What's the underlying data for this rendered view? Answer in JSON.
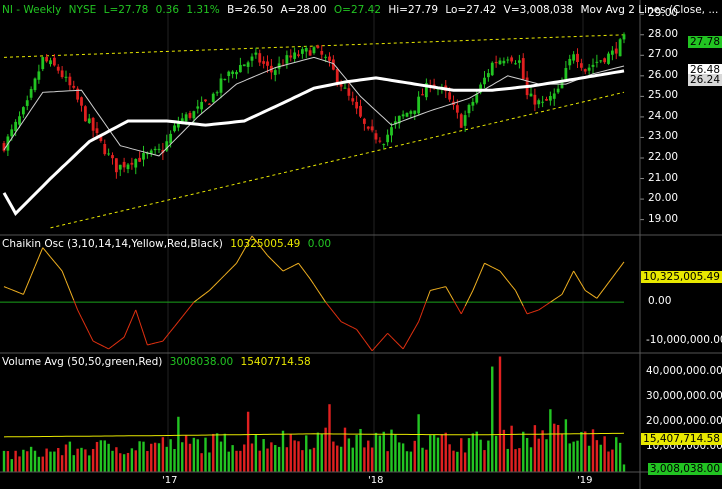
{
  "header": {
    "symbol": "NI - Weekly",
    "exchange": "NYSE",
    "last": "L=27.78",
    "change": "0.36",
    "change_pct": "1.31%",
    "bid": "B=26.50",
    "ask": "A=28.00",
    "open": "O=27.42",
    "high": "Hi=27.79",
    "low": "Lo=27.42",
    "volume": "V=3,008,038",
    "ma_label": "Mov Avg 2 Lines (Close, ..."
  },
  "chaikin_header": {
    "label": "Chaikin Osc (3,10,14,14,Yellow,Red,Black)",
    "value": "10325005.49",
    "value2": "0.00"
  },
  "volume_header": {
    "label": "Volume Avg (50,50,green,Red)",
    "value": "3008038.00",
    "value2": "15407714.58"
  },
  "price_axis": {
    "ticks": [
      "29.00",
      "28.00",
      "27.00",
      "26.00",
      "25.00",
      "24.00",
      "23.00",
      "22.00",
      "21.00",
      "20.00",
      "19.00"
    ],
    "last_label": "27.78",
    "ma_label_1": "26.48",
    "ma_label_2": "26.24"
  },
  "chaikin_axis": {
    "ticks": [
      "10,325,005.49",
      "0.00",
      "-10,000,000.00"
    ]
  },
  "volume_axis": {
    "ticks": [
      "40,000,000.00",
      "30,000,000.00",
      "20,000,000.00",
      "10,000,000.00"
    ],
    "avg_label": "15,407,714.58",
    "last_label": "3,008,038.00"
  },
  "x_axis": {
    "labels": [
      "'17",
      "'18",
      "'19"
    ]
  },
  "colors": {
    "up": "#22c422",
    "down": "#e02020",
    "volume_avg": "#e8e800",
    "osc_up": "#f0b020",
    "osc_down": "#e03010",
    "zero_line": "#1aa21a",
    "trend_line": "#e8e800"
  },
  "chart_data": [
    {
      "type": "candlestick",
      "title": "NI - Weekly",
      "ylim": [
        18.3,
        29.4
      ],
      "close_anchors": [
        [
          0,
          22.6
        ],
        [
          6,
          24.6
        ],
        [
          10,
          26.8
        ],
        [
          14,
          26.3
        ],
        [
          18,
          25.2
        ],
        [
          21,
          24.0
        ],
        [
          25,
          22.7
        ],
        [
          29,
          21.5
        ],
        [
          33,
          21.9
        ],
        [
          37,
          22.1
        ],
        [
          41,
          22.4
        ],
        [
          45,
          23.8
        ],
        [
          49,
          24.2
        ],
        [
          53,
          24.8
        ],
        [
          57,
          25.9
        ],
        [
          61,
          26.5
        ],
        [
          65,
          26.9
        ],
        [
          69,
          26.2
        ],
        [
          73,
          26.8
        ],
        [
          77,
          27.1
        ],
        [
          80,
          27.3
        ],
        [
          83,
          26.8
        ],
        [
          87,
          25.6
        ],
        [
          90,
          24.6
        ],
        [
          94,
          23.2
        ],
        [
          98,
          22.9
        ],
        [
          102,
          23.9
        ],
        [
          106,
          24.5
        ],
        [
          110,
          25.7
        ],
        [
          114,
          25.1
        ],
        [
          118,
          23.7
        ],
        [
          122,
          25.1
        ],
        [
          126,
          26.6
        ],
        [
          130,
          27.0
        ],
        [
          133,
          26.7
        ],
        [
          135,
          25.0
        ],
        [
          139,
          24.6
        ],
        [
          143,
          25.2
        ],
        [
          147,
          27.2
        ],
        [
          150,
          26.3
        ],
        [
          153,
          26.7
        ],
        [
          157,
          27.1
        ],
        [
          160,
          27.78
        ]
      ],
      "ma_fast_anchors": [
        [
          0,
          22.4
        ],
        [
          10,
          25.2
        ],
        [
          20,
          25.3
        ],
        [
          30,
          22.6
        ],
        [
          40,
          22.1
        ],
        [
          50,
          24.0
        ],
        [
          60,
          25.6
        ],
        [
          70,
          26.4
        ],
        [
          80,
          26.9
        ],
        [
          85,
          26.6
        ],
        [
          92,
          25.0
        ],
        [
          100,
          23.6
        ],
        [
          110,
          24.3
        ],
        [
          120,
          24.9
        ],
        [
          130,
          26.0
        ],
        [
          138,
          25.6
        ],
        [
          145,
          25.6
        ],
        [
          152,
          26.1
        ],
        [
          160,
          26.48
        ]
      ],
      "ma_slow_anchors": [
        [
          0,
          20.3
        ],
        [
          3,
          19.3
        ],
        [
          12,
          21.0
        ],
        [
          22,
          22.8
        ],
        [
          32,
          23.8
        ],
        [
          42,
          23.8
        ],
        [
          52,
          23.6
        ],
        [
          62,
          23.8
        ],
        [
          70,
          24.5
        ],
        [
          80,
          25.4
        ],
        [
          88,
          25.7
        ],
        [
          96,
          25.9
        ],
        [
          106,
          25.6
        ],
        [
          116,
          25.3
        ],
        [
          126,
          25.3
        ],
        [
          136,
          25.5
        ],
        [
          146,
          25.8
        ],
        [
          160,
          26.24
        ]
      ],
      "upper_trendline": [
        [
          0,
          26.9
        ],
        [
          160,
          28.0
        ]
      ],
      "lower_trendline": [
        [
          12,
          18.6
        ],
        [
          160,
          25.2
        ]
      ]
    },
    {
      "type": "line",
      "title": "Chaikin Osc (3,10,14,14,Yellow,Red,Black)",
      "ylim": [
        -12800000,
        17000000
      ],
      "anchors": [
        [
          0,
          4000000
        ],
        [
          5,
          2000000
        ],
        [
          10,
          14000000
        ],
        [
          15,
          8000000
        ],
        [
          19,
          -2000000
        ],
        [
          23,
          -10000000
        ],
        [
          27,
          -12000000
        ],
        [
          31,
          -9000000
        ],
        [
          34,
          -2000000
        ],
        [
          37,
          -11000000
        ],
        [
          41,
          -10000000
        ],
        [
          45,
          -5000000
        ],
        [
          49,
          0
        ],
        [
          53,
          3000000
        ],
        [
          56,
          6000000
        ],
        [
          60,
          10000000
        ],
        [
          64,
          17000000
        ],
        [
          68,
          12000000
        ],
        [
          72,
          8000000
        ],
        [
          76,
          10000000
        ],
        [
          79,
          6000000
        ],
        [
          83,
          0
        ],
        [
          87,
          -5000000
        ],
        [
          91,
          -7000000
        ],
        [
          95,
          -12500000
        ],
        [
          99,
          -8000000
        ],
        [
          103,
          -12000000
        ],
        [
          107,
          -5000000
        ],
        [
          110,
          3000000
        ],
        [
          114,
          4000000
        ],
        [
          118,
          -3000000
        ],
        [
          121,
          3000000
        ],
        [
          124,
          10000000
        ],
        [
          128,
          8000000
        ],
        [
          132,
          3000000
        ],
        [
          135,
          -3000000
        ],
        [
          138,
          -2000000
        ],
        [
          141,
          0
        ],
        [
          144,
          2000000
        ],
        [
          147,
          8000000
        ],
        [
          150,
          3000000
        ],
        [
          153,
          1000000
        ],
        [
          156,
          5000000
        ],
        [
          160,
          10325005
        ]
      ]
    },
    {
      "type": "bar",
      "title": "Volume Avg (50,50,green,Red)",
      "ylim": [
        0,
        47000000
      ],
      "bases": [
        [
          0,
          8000000
        ],
        [
          20,
          11000000
        ],
        [
          40,
          13000000
        ],
        [
          60,
          14000000
        ],
        [
          80,
          16000000
        ],
        [
          100,
          15000000
        ],
        [
          120,
          14000000
        ],
        [
          140,
          18000000
        ],
        [
          160,
          12000000
        ]
      ],
      "spikes": [
        [
          45,
          22000000
        ],
        [
          63,
          24000000
        ],
        [
          84,
          27000000
        ],
        [
          107,
          23000000
        ],
        [
          126,
          42000000
        ],
        [
          128,
          46000000
        ],
        [
          141,
          25000000
        ],
        [
          145,
          21000000
        ],
        [
          152,
          17000000
        ],
        [
          160,
          3008038
        ]
      ],
      "avg": [
        [
          0,
          14000000
        ],
        [
          40,
          14500000
        ],
        [
          80,
          15200000
        ],
        [
          120,
          14800000
        ],
        [
          160,
          15407714
        ]
      ]
    }
  ]
}
